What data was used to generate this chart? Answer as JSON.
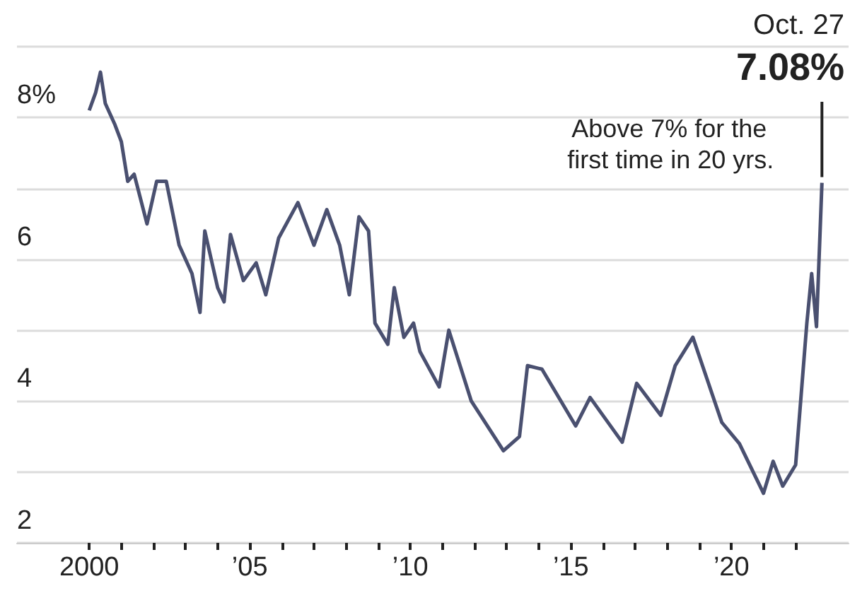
{
  "chart_data": {
    "type": "line",
    "color": "#4a5070",
    "x": [
      2000.0,
      2000.2,
      2000.35,
      2000.5,
      2000.8,
      2001.0,
      2001.2,
      2001.4,
      2001.8,
      2002.1,
      2002.4,
      2002.8,
      2003.2,
      2003.45,
      2003.6,
      2004.0,
      2004.2,
      2004.4,
      2004.8,
      2005.2,
      2005.5,
      2005.9,
      2006.5,
      2007.0,
      2007.4,
      2007.8,
      2008.1,
      2008.4,
      2008.7,
      2008.9,
      2009.3,
      2009.5,
      2009.8,
      2010.1,
      2010.3,
      2010.9,
      2011.2,
      2011.9,
      2012.9,
      2013.4,
      2013.65,
      2014.1,
      2015.15,
      2015.6,
      2016.6,
      2017.05,
      2017.8,
      2018.25,
      2018.8,
      2019.7,
      2020.25,
      2021.0,
      2021.3,
      2021.6,
      2022.0,
      2022.35,
      2022.5,
      2022.65,
      2022.82
    ],
    "values": [
      8.1,
      8.35,
      8.64,
      8.2,
      7.9,
      7.66,
      7.1,
      7.2,
      6.5,
      7.1,
      7.1,
      6.2,
      5.8,
      5.25,
      6.4,
      5.6,
      5.4,
      6.35,
      5.7,
      5.95,
      5.5,
      6.3,
      6.8,
      6.2,
      6.7,
      6.2,
      5.5,
      6.6,
      6.4,
      5.1,
      4.8,
      5.6,
      4.9,
      5.1,
      4.7,
      4.2,
      5.0,
      4.0,
      3.3,
      3.5,
      4.5,
      4.45,
      3.65,
      4.05,
      3.42,
      4.25,
      3.8,
      4.5,
      4.9,
      3.7,
      3.4,
      2.7,
      3.15,
      2.8,
      3.1,
      5.1,
      5.8,
      5.05,
      7.08
    ],
    "xlim": [
      1997.75,
      2023.65
    ],
    "xticks": [
      {
        "value": 2000,
        "label": "2000"
      },
      {
        "value": 2001,
        "label": null
      },
      {
        "value": 2002,
        "label": null
      },
      {
        "value": 2003,
        "label": null
      },
      {
        "value": 2004,
        "label": null
      },
      {
        "value": 2005,
        "label": "’05"
      },
      {
        "value": 2006,
        "label": null
      },
      {
        "value": 2007,
        "label": null
      },
      {
        "value": 2008,
        "label": null
      },
      {
        "value": 2009,
        "label": null
      },
      {
        "value": 2010,
        "label": "’10"
      },
      {
        "value": 2011,
        "label": null
      },
      {
        "value": 2012,
        "label": null
      },
      {
        "value": 2013,
        "label": null
      },
      {
        "value": 2014,
        "label": null
      },
      {
        "value": 2015,
        "label": "’15"
      },
      {
        "value": 2016,
        "label": null
      },
      {
        "value": 2017,
        "label": null
      },
      {
        "value": 2018,
        "label": null
      },
      {
        "value": 2019,
        "label": null
      },
      {
        "value": 2020,
        "label": "’20"
      },
      {
        "value": 2021,
        "label": null
      },
      {
        "value": 2022,
        "label": null
      }
    ],
    "ylim": [
      2,
      9
    ],
    "yticks": [
      2,
      4,
      6,
      {
        "value": 8,
        "label": "8%"
      }
    ],
    "grid": "y",
    "marker": "none",
    "annotations": [
      "Oct. 27",
      {
        "text": "7.08%",
        "x": 2022.82,
        "y": 7.08
      },
      "Above 7% for the first time in 20 yrs."
    ]
  }
}
